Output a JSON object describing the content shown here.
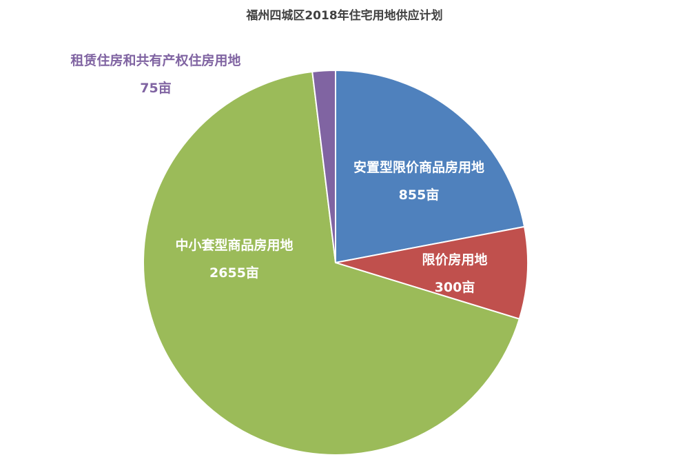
{
  "chart_data": {
    "type": "pie",
    "title": "福州四城区2018年住宅用地供应计划",
    "unit": "亩",
    "slices": [
      {
        "name": "安置型限价商品房用地",
        "value": 855,
        "value_label": "855亩",
        "color": "#4f81bd"
      },
      {
        "name": "限价房用地",
        "value": 300,
        "value_label": "300亩",
        "color": "#c0504d"
      },
      {
        "name": "中小套型商品房用地",
        "value": 2655,
        "value_label": "2655亩",
        "color": "#9bbb59"
      },
      {
        "name": "租赁住房和共有产权住房用地",
        "value": 75,
        "value_label": "75亩",
        "color": "#8064a2"
      }
    ]
  }
}
